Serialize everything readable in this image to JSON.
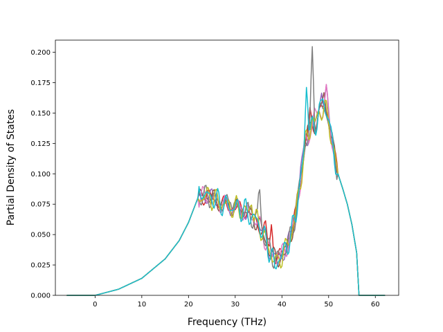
{
  "chart_data": {
    "type": "line",
    "xlabel": "Frequency (THz)",
    "ylabel": "Partial Density of States",
    "xlim": [
      -8.5,
      65
    ],
    "ylim": [
      0,
      0.21
    ],
    "xticks": [
      0,
      10,
      20,
      30,
      40,
      50,
      60
    ],
    "yticks": [
      0.0,
      0.025,
      0.05,
      0.075,
      0.1,
      0.125,
      0.15,
      0.175,
      0.2
    ],
    "xtick_labels": [
      "0",
      "10",
      "20",
      "30",
      "40",
      "50",
      "60"
    ],
    "ytick_labels": [
      "0.000",
      "0.025",
      "0.050",
      "0.075",
      "0.100",
      "0.125",
      "0.150",
      "0.175",
      "0.200"
    ],
    "grid": false,
    "legend": "none",
    "base_curve": {
      "x": [
        -6,
        0,
        5,
        10,
        15,
        18,
        20,
        21,
        22,
        24,
        26,
        28,
        30,
        32,
        34,
        35,
        36,
        37,
        38,
        39,
        40,
        41,
        42,
        43,
        44,
        45,
        46,
        47,
        48,
        49,
        50,
        51,
        52,
        53,
        54,
        55,
        56,
        56.5,
        57,
        62
      ],
      "y": [
        0.0,
        0.0,
        0.005,
        0.014,
        0.03,
        0.045,
        0.06,
        0.07,
        0.08,
        0.082,
        0.078,
        0.074,
        0.072,
        0.07,
        0.063,
        0.06,
        0.05,
        0.04,
        0.032,
        0.03,
        0.033,
        0.04,
        0.05,
        0.068,
        0.095,
        0.125,
        0.135,
        0.14,
        0.15,
        0.155,
        0.145,
        0.12,
        0.1,
        0.088,
        0.075,
        0.058,
        0.035,
        0.0,
        0.0,
        0.0
      ]
    },
    "series": [
      {
        "color": "#d62728",
        "peaks": [
          [
            36.5,
            0.012
          ],
          [
            37.8,
            0.025
          ],
          [
            46,
            0.015
          ]
        ]
      },
      {
        "color": "#9467bd",
        "peaks": [
          [
            44,
            0.01
          ],
          [
            48.5,
            0.02
          ],
          [
            49.5,
            0.018
          ]
        ]
      },
      {
        "color": "#8c564b",
        "peaks": [
          [
            45.5,
            0.01
          ],
          [
            49,
            0.012
          ]
        ]
      },
      {
        "color": "#e377c2",
        "peaks": [
          [
            47,
            0.012
          ],
          [
            49.5,
            0.015
          ]
        ]
      },
      {
        "color": "#7f7f7f",
        "peaks": [
          [
            29,
            0.012
          ],
          [
            35.2,
            0.03
          ],
          [
            46.5,
            0.06
          ]
        ]
      },
      {
        "color": "#bcbd22",
        "peaks": [
          [
            33.5,
            0.015
          ],
          [
            39,
            -0.006
          ],
          [
            46.5,
            0.01
          ]
        ]
      },
      {
        "color": "#17becf",
        "peaks": [
          [
            23,
            0.007
          ],
          [
            38.5,
            -0.01
          ],
          [
            45.3,
            0.048
          ],
          [
            48.8,
            0.01
          ]
        ]
      }
    ]
  }
}
